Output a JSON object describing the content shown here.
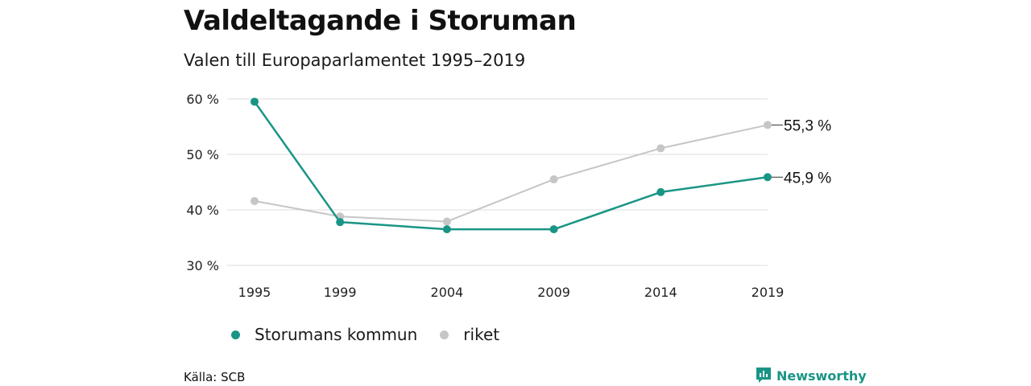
{
  "title": "Valdeltagande i Storuman",
  "subtitle": "Valen till Europaparlamentet 1995–2019",
  "source": "Källa: SCB",
  "brand": "Newsworthy",
  "colors": {
    "storuman": "#1a9585",
    "riket": "#c6c6c6",
    "grid": "#dddddd",
    "text": "#111111",
    "brand": "#1a9585"
  },
  "chart_data": {
    "type": "line",
    "x": [
      "1995",
      "1999",
      "2004",
      "2009",
      "2014",
      "2019"
    ],
    "series": [
      {
        "name": "Storumans kommun",
        "values": [
          59.5,
          37.8,
          36.5,
          36.5,
          43.2,
          45.9
        ]
      },
      {
        "name": "riket",
        "values": [
          41.6,
          38.8,
          37.9,
          45.5,
          51.1,
          55.3
        ]
      }
    ],
    "yticks": [
      "30 %",
      "40 %",
      "50 %",
      "60 %"
    ],
    "ylim": [
      30,
      60
    ],
    "grid": true,
    "end_labels": [
      "45,9 %",
      "55,3 %"
    ],
    "legend_position": "bottom-left"
  }
}
